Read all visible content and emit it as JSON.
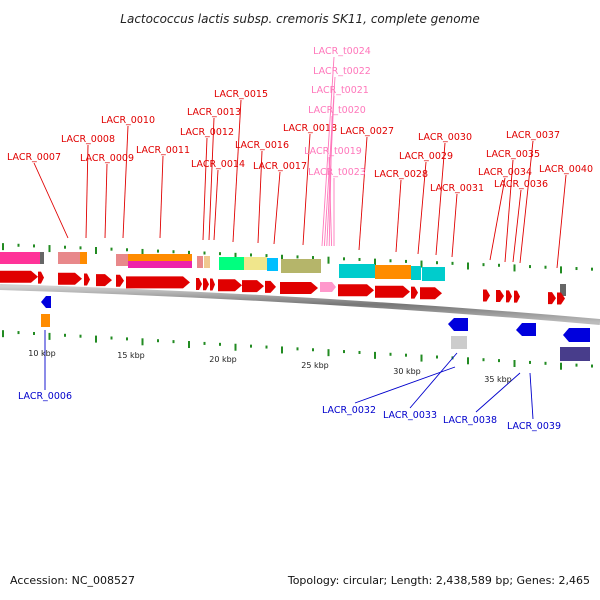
{
  "title": "Lactococcus lactis subsp. cremoris SK11, complete genome",
  "footer": {
    "accession": "Accession: NC_008527",
    "summary": "Topology: circular; Length: 2,438,589 bp; Genes: 2,465"
  },
  "colors": {
    "forward_gene": "#e00000",
    "reverse_gene": "#0000dd",
    "trna": "#ff99cc",
    "backbone": "#888888",
    "ticks": "#228b22"
  },
  "axis_ticks": [
    "10 kbp",
    "15 kbp",
    "20 kbp",
    "25 kbp",
    "30 kbp",
    "35 kbp"
  ],
  "forward_labels": [
    "LACR_0007",
    "LACR_0008",
    "LACR_0009",
    "LACR_0010",
    "LACR_0011",
    "LACR_0012",
    "LACR_0013",
    "LACR_0014",
    "LACR_0015",
    "LACR_0016",
    "LACR_0017",
    "LACR_0018",
    "LACR_0027",
    "LACR_0028",
    "LACR_0029",
    "LACR_0030",
    "LACR_0031",
    "LACR_0034",
    "LACR_0035",
    "LACR_0036",
    "LACR_0037",
    "LACR_0040"
  ],
  "trna_labels": [
    "LACR_t0024",
    "LACR_t0022",
    "LACR_t0021",
    "LACR_t0020",
    "LACR_t0019",
    "LACR_t0023"
  ],
  "reverse_labels": [
    "LACR_0006",
    "LACR_0032",
    "LACR_0033",
    "LACR_0038",
    "LACR_0039"
  ]
}
